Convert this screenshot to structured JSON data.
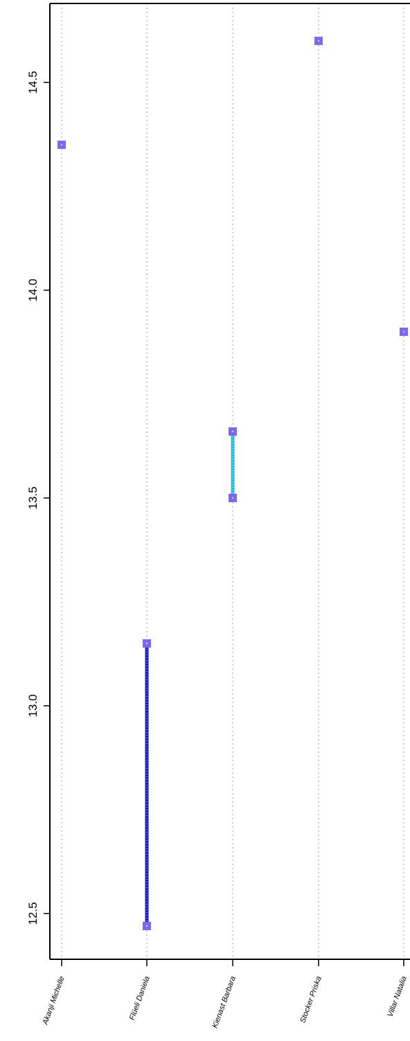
{
  "chart_data": {
    "type": "scatter",
    "title": "",
    "xlabel": "",
    "ylabel": "",
    "categories": [
      "Akanji Michelle",
      "Flüeli Daniela",
      "Kienast Barbara",
      "Stocker Priska",
      "Villar Natalia"
    ],
    "ylim": [
      12.39,
      14.69
    ],
    "y_ticks": [
      12.5,
      13.0,
      13.5,
      14.0,
      14.5
    ],
    "y_tick_labels": [
      "12.5",
      "13.0",
      "13.5",
      "14.0",
      "14.5"
    ],
    "grid": "vertical dotted",
    "points": [
      {
        "category": "Akanji Michelle",
        "values": [
          14.35
        ]
      },
      {
        "category": "Flüeli Daniela",
        "values": [
          13.15,
          12.47
        ]
      },
      {
        "category": "Kienast Barbara",
        "values": [
          13.66,
          13.5
        ]
      },
      {
        "category": "Stocker Priska",
        "values": [
          14.6
        ]
      },
      {
        "category": "Villar Natalia",
        "values": [
          13.9
        ]
      }
    ],
    "colors": {
      "marker": "#7b68ee",
      "range_flueli": "#1a1ac8",
      "range_kienast": "#29b6e0",
      "grid": "#bbbbbb",
      "axis": "#000000"
    }
  }
}
